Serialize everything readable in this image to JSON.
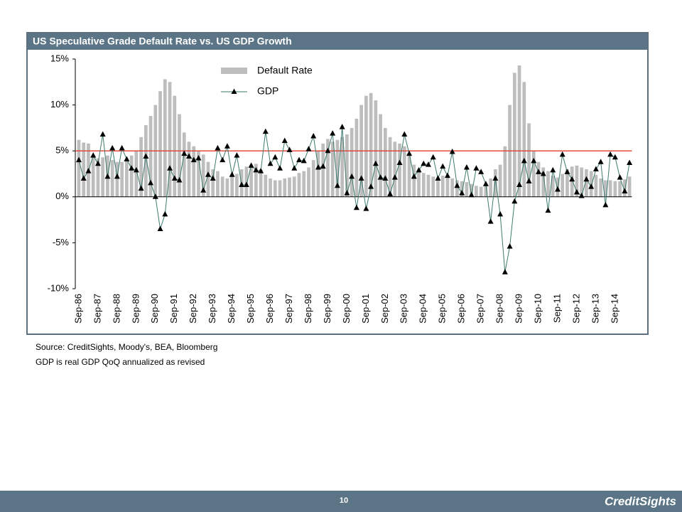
{
  "chart_data": {
    "type": "bar_line",
    "title": "US Speculative Grade Default Rate vs. US GDP Growth",
    "categories": [
      "Sep-86",
      null,
      null,
      null,
      "Sep-87",
      null,
      null,
      null,
      "Sep-88",
      null,
      null,
      null,
      "Sep-89",
      null,
      null,
      null,
      "Sep-90",
      null,
      null,
      null,
      "Sep-91",
      null,
      null,
      null,
      "Sep-92",
      null,
      null,
      null,
      "Sep-93",
      null,
      null,
      null,
      "Sep-94",
      null,
      null,
      null,
      "Sep-95",
      null,
      null,
      null,
      "Sep-96",
      null,
      null,
      null,
      "Sep-97",
      null,
      null,
      null,
      "Sep-98",
      null,
      null,
      null,
      "Sep-99",
      null,
      null,
      null,
      "Sep-00",
      null,
      null,
      null,
      "Sep-01",
      null,
      null,
      null,
      "Sep-02",
      null,
      null,
      null,
      "Sep-03",
      null,
      null,
      null,
      "Sep-04",
      null,
      null,
      null,
      "Sep-05",
      null,
      null,
      null,
      "Sep-06",
      null,
      null,
      null,
      "Sep-07",
      null,
      null,
      null,
      "Sep-08",
      null,
      null,
      null,
      "Sep-09",
      null,
      null,
      null,
      "Sep-10",
      null,
      null,
      null,
      "Sep-11",
      null,
      null,
      null,
      "Sep-12",
      null,
      null,
      null,
      "Sep-13",
      null,
      null,
      null,
      "Sep-14",
      null,
      null,
      null
    ],
    "series": [
      {
        "name": "Default Rate",
        "type": "bar",
        "color": "#bdbdbd",
        "values": [
          6.2,
          5.9,
          5.8,
          4.5,
          4.2,
          4.3,
          4.5,
          4.0,
          3.8,
          3.8,
          4.0,
          4.5,
          5.0,
          6.5,
          7.8,
          8.8,
          10.0,
          11.5,
          12.8,
          12.5,
          11.0,
          9.0,
          7.0,
          6.0,
          5.5,
          5.0,
          4.6,
          3.8,
          3.0,
          2.8,
          2.2,
          2.0,
          2.2,
          2.5,
          3.0,
          3.3,
          3.5,
          3.6,
          3.0,
          2.4,
          2.0,
          1.8,
          1.8,
          2.0,
          2.1,
          2.2,
          2.6,
          2.8,
          3.2,
          4.0,
          5.0,
          5.8,
          6.3,
          6.0,
          6.2,
          6.5,
          6.8,
          7.5,
          8.5,
          10.0,
          11.0,
          11.3,
          10.5,
          9.0,
          7.5,
          6.5,
          6.0,
          5.8,
          5.5,
          4.5,
          3.5,
          3.0,
          2.6,
          2.4,
          2.2,
          2.1,
          2.3,
          2.2,
          2.0,
          1.8,
          1.7,
          1.6,
          1.4,
          1.2,
          1.1,
          1.2,
          2.0,
          3.0,
          3.5,
          5.5,
          10.0,
          13.5,
          14.3,
          12.5,
          8.0,
          5.0,
          3.8,
          3.2,
          2.8,
          2.3,
          2.1,
          2.5,
          3.0,
          3.3,
          3.4,
          3.2,
          3.0,
          2.8,
          2.4,
          2.0,
          1.8,
          1.8,
          1.7,
          1.7,
          1.9,
          2.2
        ]
      },
      {
        "name": "GDP",
        "type": "line",
        "color": "#3d7a6e",
        "values": [
          4.0,
          2.0,
          2.8,
          4.5,
          3.6,
          6.8,
          2.2,
          5.3,
          2.2,
          5.3,
          4.1,
          3.1,
          2.9,
          0.9,
          4.4,
          1.5,
          0.0,
          -3.5,
          -1.9,
          3.1,
          2.0,
          1.8,
          4.7,
          4.4,
          4.0,
          4.2,
          0.7,
          2.4,
          2.0,
          5.3,
          4.0,
          5.5,
          2.4,
          4.5,
          1.3,
          1.3,
          3.4,
          2.9,
          2.8,
          7.1,
          3.6,
          4.3,
          3.1,
          6.1,
          5.1,
          3.1,
          4.0,
          3.9,
          5.2,
          6.6,
          3.2,
          3.3,
          5.0,
          6.9,
          1.2,
          7.6,
          0.4,
          2.2,
          -1.2,
          2.0,
          -1.3,
          1.1,
          3.6,
          2.1,
          2.0,
          0.3,
          2.1,
          3.7,
          6.8,
          4.7,
          2.2,
          2.9,
          3.6,
          3.5,
          4.3,
          2.0,
          3.3,
          2.3,
          4.9,
          1.2,
          0.4,
          3.2,
          0.2,
          3.1,
          2.7,
          1.4,
          -2.7,
          2.0,
          -1.9,
          -8.2,
          -5.4,
          -0.5,
          1.3,
          3.9,
          1.7,
          3.9,
          2.7,
          2.5,
          -1.5,
          2.9,
          0.8,
          4.6,
          2.7,
          1.9,
          0.5,
          0.1,
          1.9,
          1.1,
          3.0,
          3.8,
          -0.9,
          4.6,
          4.3,
          2.1,
          0.6,
          3.7
        ]
      }
    ],
    "reference_line": 5,
    "reference_color": "#e03c31",
    "ylim": [
      -10,
      15
    ],
    "yticks": [
      {
        "value": -10,
        "label": "-10%"
      },
      {
        "value": -5,
        "label": "-5%"
      },
      {
        "value": 0,
        "label": "0%"
      },
      {
        "value": 5,
        "label": "5%"
      },
      {
        "value": 10,
        "label": "10%"
      },
      {
        "value": 15,
        "label": "15%"
      }
    ],
    "grid": false
  },
  "notes": [
    "Source: CreditSights, Moody's, BEA, Bloomberg",
    "GDP is real GDP QoQ annualized as revised"
  ],
  "footer": {
    "page": "10",
    "logo": "CreditSights"
  }
}
